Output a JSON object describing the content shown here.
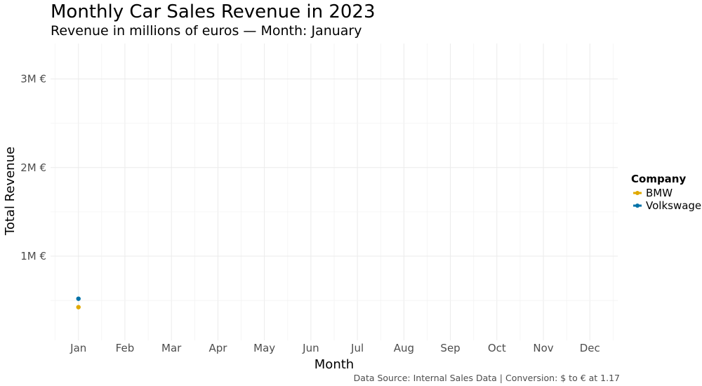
{
  "chart_data": {
    "type": "line",
    "title": "Monthly Car Sales Revenue in 2023",
    "subtitle": "Revenue in millions of euros — Month: January",
    "xlabel": "Month",
    "ylabel": "Total Revenue",
    "caption": "Data Source: Internal Sales Data | Conversion: $ to € at 1.17",
    "categories": [
      "Jan",
      "Feb",
      "Mar",
      "Apr",
      "May",
      "Jun",
      "Jul",
      "Aug",
      "Sep",
      "Oct",
      "Nov",
      "Dec"
    ],
    "y_ticks": [
      {
        "value": 1000000,
        "label": "1M €"
      },
      {
        "value": 2000000,
        "label": "2M €"
      },
      {
        "value": 3000000,
        "label": "3M €"
      }
    ],
    "ylim": [
      50000,
      3400000
    ],
    "grid": true,
    "legend": {
      "title": "Company",
      "placement": "right"
    },
    "series": [
      {
        "name": "BMW",
        "color": "#E0A800",
        "values": [
          425000,
          null,
          null,
          null,
          null,
          null,
          null,
          null,
          null,
          null,
          null,
          null
        ]
      },
      {
        "name": "Volkswagen",
        "color": "#0072A8",
        "values": [
          520000,
          null,
          null,
          null,
          null,
          null,
          null,
          null,
          null,
          null,
          null,
          null
        ]
      }
    ]
  }
}
